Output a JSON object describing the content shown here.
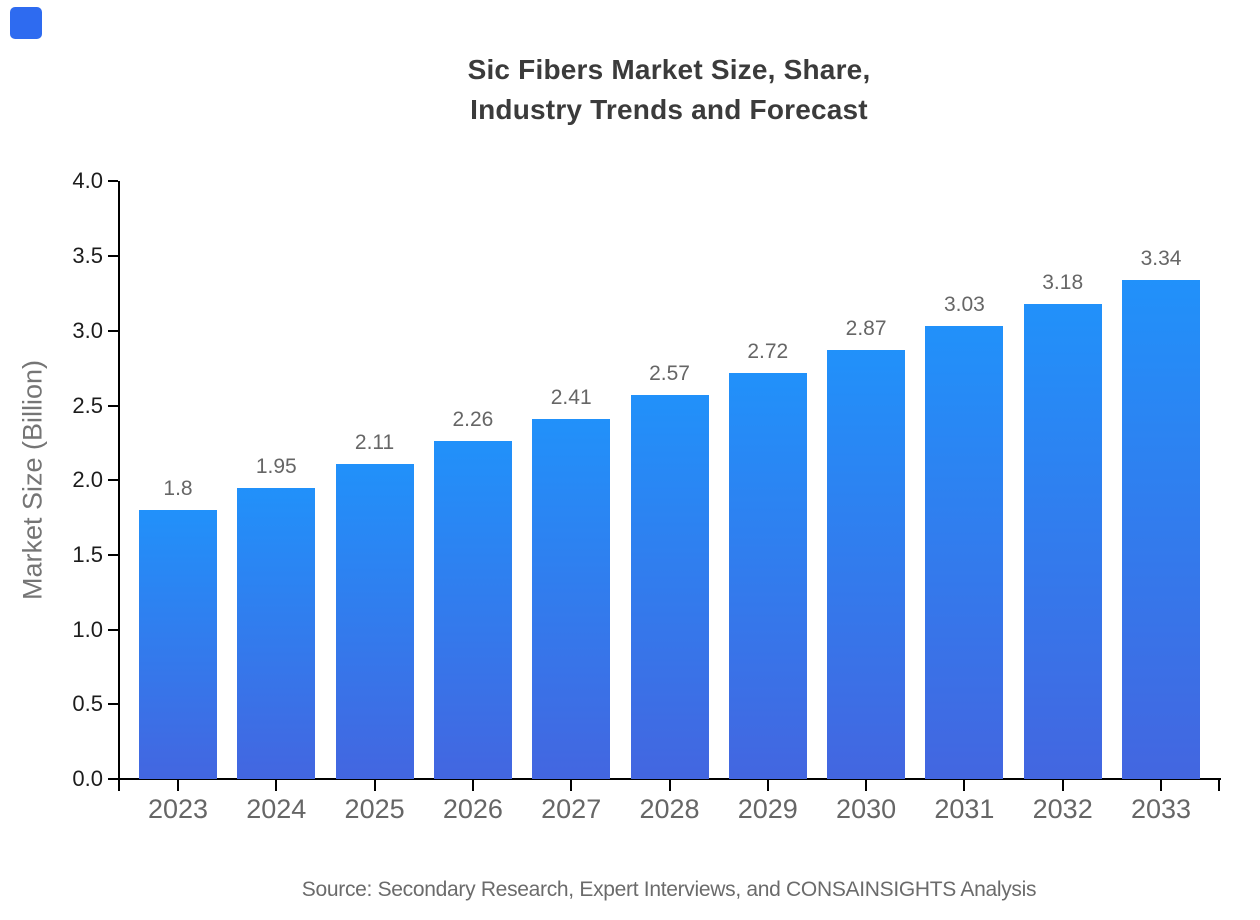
{
  "logo": {
    "color": "#2e6bf0"
  },
  "title": {
    "line1": "Sic Fibers Market Size, Share,",
    "line2": "Industry Trends and Forecast"
  },
  "source": "Source: Secondary Research, Expert Interviews, and CONSAINSIGHTS Analysis",
  "colors": {
    "title_text": "#3b3b3b",
    "axis": "#000000",
    "y_tick_label": "#1c1c1c",
    "x_tick_label": "#666666",
    "value_label": "#666666",
    "y_axis_title": "#757575",
    "source_text": "#6b6b6b",
    "bar_gradient_top": "#2191fa",
    "bar_gradient_bottom": "#4366e0"
  },
  "chart_data": {
    "type": "bar",
    "title": "Sic Fibers Market Size, Share, Industry Trends and Forecast",
    "categories": [
      "2023",
      "2024",
      "2025",
      "2026",
      "2027",
      "2028",
      "2029",
      "2030",
      "2031",
      "2032",
      "2033"
    ],
    "values": [
      1.8,
      1.95,
      2.11,
      2.26,
      2.41,
      2.57,
      2.72,
      2.87,
      3.03,
      3.18,
      3.34
    ],
    "value_labels": [
      "1.8",
      "1.95",
      "2.11",
      "2.26",
      "2.41",
      "2.57",
      "2.72",
      "2.87",
      "3.03",
      "3.18",
      "3.34"
    ],
    "xlabel": "",
    "ylabel": "Market Size (Billion)",
    "ylim": [
      0.0,
      4.0
    ],
    "ytick_step": 0.5,
    "ytick_labels": [
      "0.0",
      "0.5",
      "1.0",
      "1.5",
      "2.0",
      "2.5",
      "3.0",
      "3.5",
      "4.0"
    ],
    "grid": false,
    "legend": null
  }
}
